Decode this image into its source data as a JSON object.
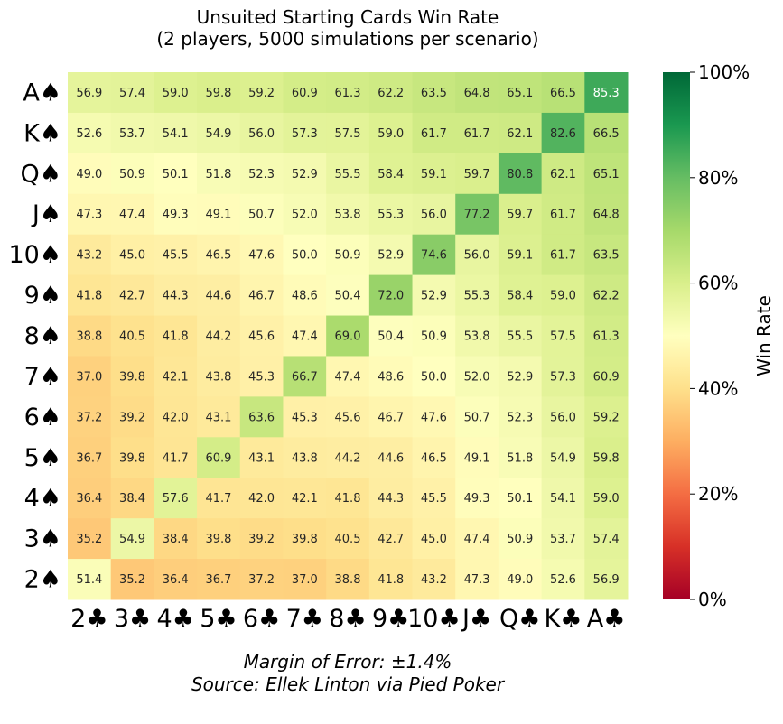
{
  "chart_data": {
    "type": "heatmap",
    "title": "Unsuited Starting Cards Win Rate",
    "subtitle": "(2 players, 5000 simulations per scenario)",
    "row_labels": [
      "A♠",
      "K♠",
      "Q♠",
      "J♠",
      "10♠",
      "9♠",
      "8♠",
      "7♠",
      "6♠",
      "5♠",
      "4♠",
      "3♠",
      "2♠"
    ],
    "col_labels": [
      "2♣",
      "3♣",
      "4♣",
      "5♣",
      "6♣",
      "7♣",
      "8♣",
      "9♣",
      "10♣",
      "J♣",
      "Q♣",
      "K♣",
      "A♣"
    ],
    "values": [
      [
        56.9,
        57.4,
        59.0,
        59.8,
        59.2,
        60.9,
        61.3,
        62.2,
        63.5,
        64.8,
        65.1,
        66.5,
        85.3
      ],
      [
        52.6,
        53.7,
        54.1,
        54.9,
        56.0,
        57.3,
        57.5,
        59.0,
        61.7,
        61.7,
        62.1,
        82.6,
        66.5
      ],
      [
        49.0,
        50.9,
        50.1,
        51.8,
        52.3,
        52.9,
        55.5,
        58.4,
        59.1,
        59.7,
        80.8,
        62.1,
        65.1
      ],
      [
        47.3,
        47.4,
        49.3,
        49.1,
        50.7,
        52.0,
        53.8,
        55.3,
        56.0,
        77.2,
        59.7,
        61.7,
        64.8
      ],
      [
        43.2,
        45.0,
        45.5,
        46.5,
        47.6,
        50.0,
        50.9,
        52.9,
        74.6,
        56.0,
        59.1,
        61.7,
        63.5
      ],
      [
        41.8,
        42.7,
        44.3,
        44.6,
        46.7,
        48.6,
        50.4,
        72.0,
        52.9,
        55.3,
        58.4,
        59.0,
        62.2
      ],
      [
        38.8,
        40.5,
        41.8,
        44.2,
        45.6,
        47.4,
        69.0,
        50.4,
        50.9,
        53.8,
        55.5,
        57.5,
        61.3
      ],
      [
        37.0,
        39.8,
        42.1,
        43.8,
        45.3,
        66.7,
        47.4,
        48.6,
        50.0,
        52.0,
        52.9,
        57.3,
        60.9
      ],
      [
        37.2,
        39.2,
        42.0,
        43.1,
        63.6,
        45.3,
        45.6,
        46.7,
        47.6,
        50.7,
        52.3,
        56.0,
        59.2
      ],
      [
        36.7,
        39.8,
        41.7,
        60.9,
        43.1,
        43.8,
        44.2,
        44.6,
        46.5,
        49.1,
        51.8,
        54.9,
        59.8
      ],
      [
        36.4,
        38.4,
        57.6,
        41.7,
        42.0,
        42.1,
        41.8,
        44.3,
        45.5,
        49.3,
        50.1,
        54.1,
        59.0
      ],
      [
        35.2,
        54.9,
        38.4,
        39.8,
        39.2,
        39.8,
        40.5,
        42.7,
        45.0,
        47.4,
        50.9,
        53.7,
        57.4
      ],
      [
        51.4,
        35.2,
        36.4,
        36.7,
        37.2,
        37.0,
        38.8,
        41.8,
        43.2,
        47.3,
        49.0,
        52.6,
        56.9
      ]
    ],
    "value_range": [
      0,
      100
    ],
    "colormap": "RdYlGn",
    "colorbar": {
      "label": "Win Rate",
      "ticks": [
        0,
        20,
        40,
        60,
        80,
        100
      ],
      "tick_labels": [
        "0%",
        "20%",
        "40%",
        "60%",
        "80%",
        "100%"
      ]
    },
    "grid": false,
    "annotations": [
      "Margin of Error: ±1.4%",
      "Source: Ellek Linton via Pied Poker"
    ]
  }
}
